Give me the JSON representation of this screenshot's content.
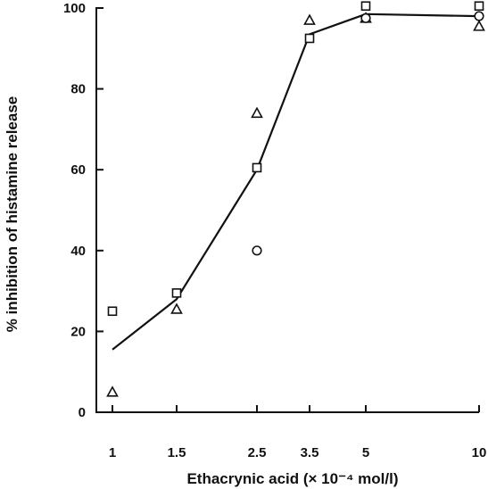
{
  "chart_data": {
    "type": "line",
    "xlabel": "Ethacrynic acid (× 10⁻⁴ mol/l)",
    "ylabel": "% inhibition of histamine release",
    "x_scale": "log",
    "x_ticks": [
      1,
      1.5,
      2.5,
      3.5,
      5,
      10
    ],
    "x_tick_labels": [
      "1",
      "1.5",
      "2.5",
      "3.5",
      "5",
      "10"
    ],
    "xlim": [
      1,
      10
    ],
    "ylim": [
      0,
      100
    ],
    "y_ticks": [
      0,
      20,
      40,
      60,
      80,
      100
    ],
    "grid": false,
    "legend": "none",
    "curve": {
      "x": [
        1,
        1.5,
        2.5,
        3.5,
        5,
        10
      ],
      "y": [
        15.5,
        28,
        60,
        93.5,
        98.5,
        98
      ]
    },
    "series": [
      {
        "marker": "square",
        "x": [
          1,
          1.5,
          2.5,
          3.5,
          5,
          10
        ],
        "y": [
          25,
          29.5,
          60.5,
          92.5,
          100.5,
          100.5
        ]
      },
      {
        "marker": "triangle",
        "x": [
          1,
          1.5,
          2.5,
          3.5,
          5,
          10
        ],
        "y": [
          5,
          25.5,
          74,
          97,
          97.5,
          95.5
        ]
      },
      {
        "marker": "circle",
        "x": [
          2.5,
          5,
          10
        ],
        "y": [
          40,
          97.5,
          98
        ]
      }
    ]
  }
}
